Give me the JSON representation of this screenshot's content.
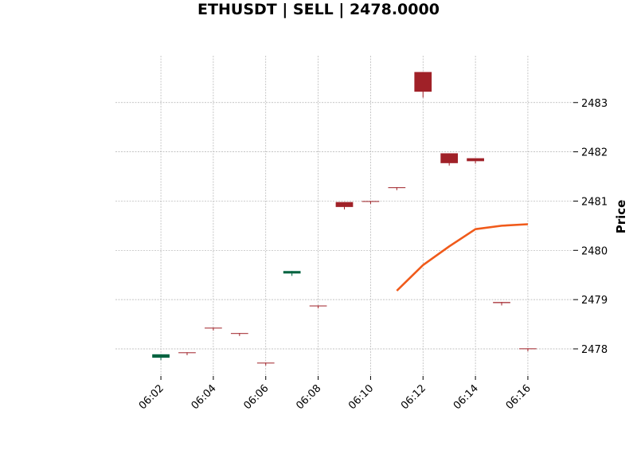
{
  "chart_data": {
    "type": "candlestick",
    "title": "ETHUSDT | SELL | 2478.0000",
    "ylabel": "Price",
    "xlabel": "",
    "x_ticks": [
      "06:02",
      "06:04",
      "06:06",
      "06:08",
      "06:10",
      "06:12",
      "06:14",
      "06:16"
    ],
    "y_ticks": [
      2478,
      2479,
      2480,
      2481,
      2482,
      2483
    ],
    "xlim": [
      "06:00:16",
      "06:17:44"
    ],
    "ylim": [
      2477.45,
      2483.95
    ],
    "grid": true,
    "y_axis_position": "right",
    "colors": {
      "up": "#006340",
      "down": "#a02128",
      "line": "#f05a1a"
    },
    "candles": [
      {
        "time": "06:02",
        "open": 2477.82,
        "high": 2477.89,
        "low": 2477.82,
        "close": 2477.89
      },
      {
        "time": "06:03",
        "open": 2477.93,
        "high": 2477.93,
        "low": 2477.92,
        "close": 2477.92
      },
      {
        "time": "06:04",
        "open": 2478.43,
        "high": 2478.43,
        "low": 2478.42,
        "close": 2478.42
      },
      {
        "time": "06:05",
        "open": 2478.32,
        "high": 2478.32,
        "low": 2478.31,
        "close": 2478.31
      },
      {
        "time": "06:06",
        "open": 2477.72,
        "high": 2477.72,
        "low": 2477.71,
        "close": 2477.71
      },
      {
        "time": "06:07",
        "open": 2479.53,
        "high": 2479.58,
        "low": 2479.53,
        "close": 2479.58
      },
      {
        "time": "06:08",
        "open": 2478.88,
        "high": 2478.88,
        "low": 2478.87,
        "close": 2478.87
      },
      {
        "time": "06:09",
        "open": 2480.98,
        "high": 2480.98,
        "low": 2480.88,
        "close": 2480.88
      },
      {
        "time": "06:10",
        "open": 2481.0,
        "high": 2481.0,
        "low": 2480.99,
        "close": 2480.99
      },
      {
        "time": "06:11",
        "open": 2481.28,
        "high": 2481.28,
        "low": 2481.27,
        "close": 2481.27
      },
      {
        "time": "06:12",
        "open": 2483.62,
        "high": 2483.62,
        "low": 2483.15,
        "close": 2483.22
      },
      {
        "time": "06:13",
        "open": 2481.97,
        "high": 2481.97,
        "low": 2481.77,
        "close": 2481.77
      },
      {
        "time": "06:14",
        "open": 2481.87,
        "high": 2481.87,
        "low": 2481.81,
        "close": 2481.81
      },
      {
        "time": "06:15",
        "open": 2478.95,
        "high": 2478.95,
        "low": 2478.93,
        "close": 2478.93
      },
      {
        "time": "06:16",
        "open": 2478.01,
        "high": 2478.01,
        "low": 2478.0,
        "close": 2478.0
      }
    ],
    "series": [
      {
        "x": [
          "06:11",
          "06:12",
          "06:13",
          "06:14",
          "06:15",
          "06:16"
        ],
        "values": [
          2479.18,
          2479.7,
          2480.08,
          2480.43,
          2480.5,
          2480.53
        ]
      }
    ]
  }
}
